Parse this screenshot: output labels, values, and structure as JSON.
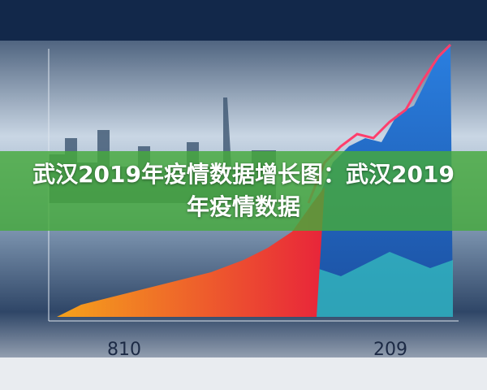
{
  "title": "武汉2019年疫情数据增长图：武汉2019年疫情数据",
  "labels": [
    "810",
    "209"
  ]
}
